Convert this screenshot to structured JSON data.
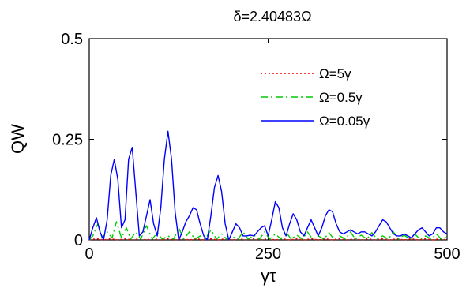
{
  "chart_data": {
    "type": "line",
    "title": "δ=2.40483Ω",
    "xlabel": "γτ",
    "ylabel": "QW",
    "xlim": [
      0,
      500
    ],
    "ylim": [
      0,
      0.5
    ],
    "xticks": [
      "0",
      "250",
      "500"
    ],
    "yticks": [
      "0",
      "0.25",
      "0.5"
    ],
    "grid": false,
    "legend_position": "top-right",
    "series": [
      {
        "name": "Ω=5γ",
        "color": "#ff0000",
        "style": "dotted",
        "x": [
          0,
          10,
          20,
          30,
          40,
          50,
          60,
          70,
          80,
          90,
          100,
          110,
          120,
          130,
          140,
          150,
          160,
          170,
          180,
          190,
          200,
          210,
          220,
          230,
          240,
          250,
          260,
          270,
          280,
          290,
          300,
          310,
          320,
          330,
          340,
          350,
          360,
          370,
          380,
          390,
          400,
          410,
          420,
          430,
          440,
          450,
          460,
          470,
          480,
          490,
          500
        ],
        "y": [
          0,
          0.003,
          0,
          0.003,
          0,
          0.003,
          0,
          0.003,
          0,
          0.003,
          0,
          0.003,
          0,
          0.003,
          0,
          0.003,
          0,
          0.003,
          0,
          0.003,
          0,
          0.003,
          0,
          0.003,
          0,
          0.003,
          0,
          0.003,
          0,
          0.003,
          0,
          0.003,
          0,
          0.003,
          0,
          0.003,
          0,
          0.003,
          0,
          0.003,
          0,
          0.003,
          0,
          0.003,
          0,
          0.003,
          0,
          0.003,
          0,
          0.003,
          0
        ]
      },
      {
        "name": "Ω=0.5γ",
        "color": "#00cc00",
        "style": "dashdot",
        "x": [
          0,
          5,
          12,
          18,
          25,
          32,
          38,
          45,
          52,
          58,
          65,
          72,
          80,
          88,
          95,
          102,
          110,
          118,
          125,
          132,
          140,
          148,
          155,
          162,
          170,
          178,
          185,
          192,
          200,
          208,
          215,
          222,
          230,
          238,
          245,
          252,
          260,
          268,
          275,
          282,
          290,
          298,
          305,
          312,
          320,
          328,
          335,
          342,
          350,
          358,
          365,
          372,
          380,
          388,
          395,
          402,
          410,
          418,
          425,
          432,
          440,
          448,
          455,
          462,
          470,
          478,
          485,
          492,
          500
        ],
        "y": [
          0,
          0.01,
          0.04,
          0.005,
          0.02,
          0.005,
          0.045,
          0.005,
          0.03,
          0.002,
          0.02,
          0.002,
          0.035,
          0.002,
          0.018,
          0.002,
          0.01,
          0.002,
          0.03,
          0.002,
          0.02,
          0.002,
          0.01,
          0.002,
          0.025,
          0.002,
          0.015,
          0.002,
          0.008,
          0.002,
          0.02,
          0.002,
          0.012,
          0.002,
          0.02,
          0.002,
          0.015,
          0.002,
          0.02,
          0.002,
          0.012,
          0.002,
          0.02,
          0.002,
          0.01,
          0.002,
          0.018,
          0.002,
          0.01,
          0.002,
          0.02,
          0.002,
          0.012,
          0.002,
          0.018,
          0.002,
          0.01,
          0.002,
          0.02,
          0.002,
          0.012,
          0.002,
          0.015,
          0.002,
          0.01,
          0.002,
          0.015,
          0.002,
          0.008
        ]
      },
      {
        "name": "Ω=0.05γ",
        "color": "#0000ff",
        "style": "solid",
        "x": [
          0,
          5,
          10,
          15,
          20,
          25,
          30,
          35,
          40,
          45,
          50,
          55,
          60,
          65,
          70,
          75,
          80,
          85,
          90,
          95,
          100,
          105,
          110,
          115,
          120,
          125,
          130,
          135,
          140,
          145,
          150,
          155,
          160,
          165,
          170,
          175,
          180,
          185,
          190,
          195,
          200,
          205,
          210,
          215,
          220,
          225,
          230,
          235,
          240,
          245,
          250,
          255,
          260,
          265,
          270,
          275,
          280,
          285,
          290,
          295,
          300,
          305,
          310,
          315,
          320,
          325,
          330,
          335,
          340,
          345,
          350,
          355,
          360,
          365,
          370,
          375,
          380,
          385,
          390,
          395,
          400,
          405,
          410,
          415,
          420,
          425,
          430,
          435,
          440,
          445,
          450,
          455,
          460,
          465,
          470,
          475,
          480,
          485,
          490,
          495,
          500
        ],
        "y": [
          0,
          0.03,
          0.055,
          0.02,
          0.0,
          0.05,
          0.16,
          0.2,
          0.15,
          0.03,
          0.05,
          0.2,
          0.23,
          0.12,
          0.01,
          0.02,
          0.06,
          0.1,
          0.04,
          0.01,
          0.08,
          0.2,
          0.27,
          0.2,
          0.07,
          0.0,
          0.02,
          0.045,
          0.06,
          0.08,
          0.075,
          0.04,
          0.01,
          0.0,
          0.06,
          0.13,
          0.16,
          0.12,
          0.04,
          0.0,
          0.02,
          0.04,
          0.03,
          0.01,
          0.01,
          0.012,
          0.01,
          0.02,
          0.03,
          0.035,
          0.01,
          0.05,
          0.095,
          0.08,
          0.03,
          0.01,
          0.04,
          0.065,
          0.05,
          0.02,
          0.01,
          0.03,
          0.05,
          0.03,
          0.01,
          0.03,
          0.06,
          0.075,
          0.07,
          0.04,
          0.02,
          0.015,
          0.02,
          0.025,
          0.02,
          0.015,
          0.02,
          0.02,
          0.015,
          0.01,
          0.02,
          0.035,
          0.05,
          0.045,
          0.03,
          0.015,
          0.01,
          0.01,
          0.015,
          0.01,
          0.005,
          0.015,
          0.025,
          0.03,
          0.02,
          0.01,
          0.015,
          0.03,
          0.03,
          0.02,
          0.015
        ]
      }
    ]
  }
}
